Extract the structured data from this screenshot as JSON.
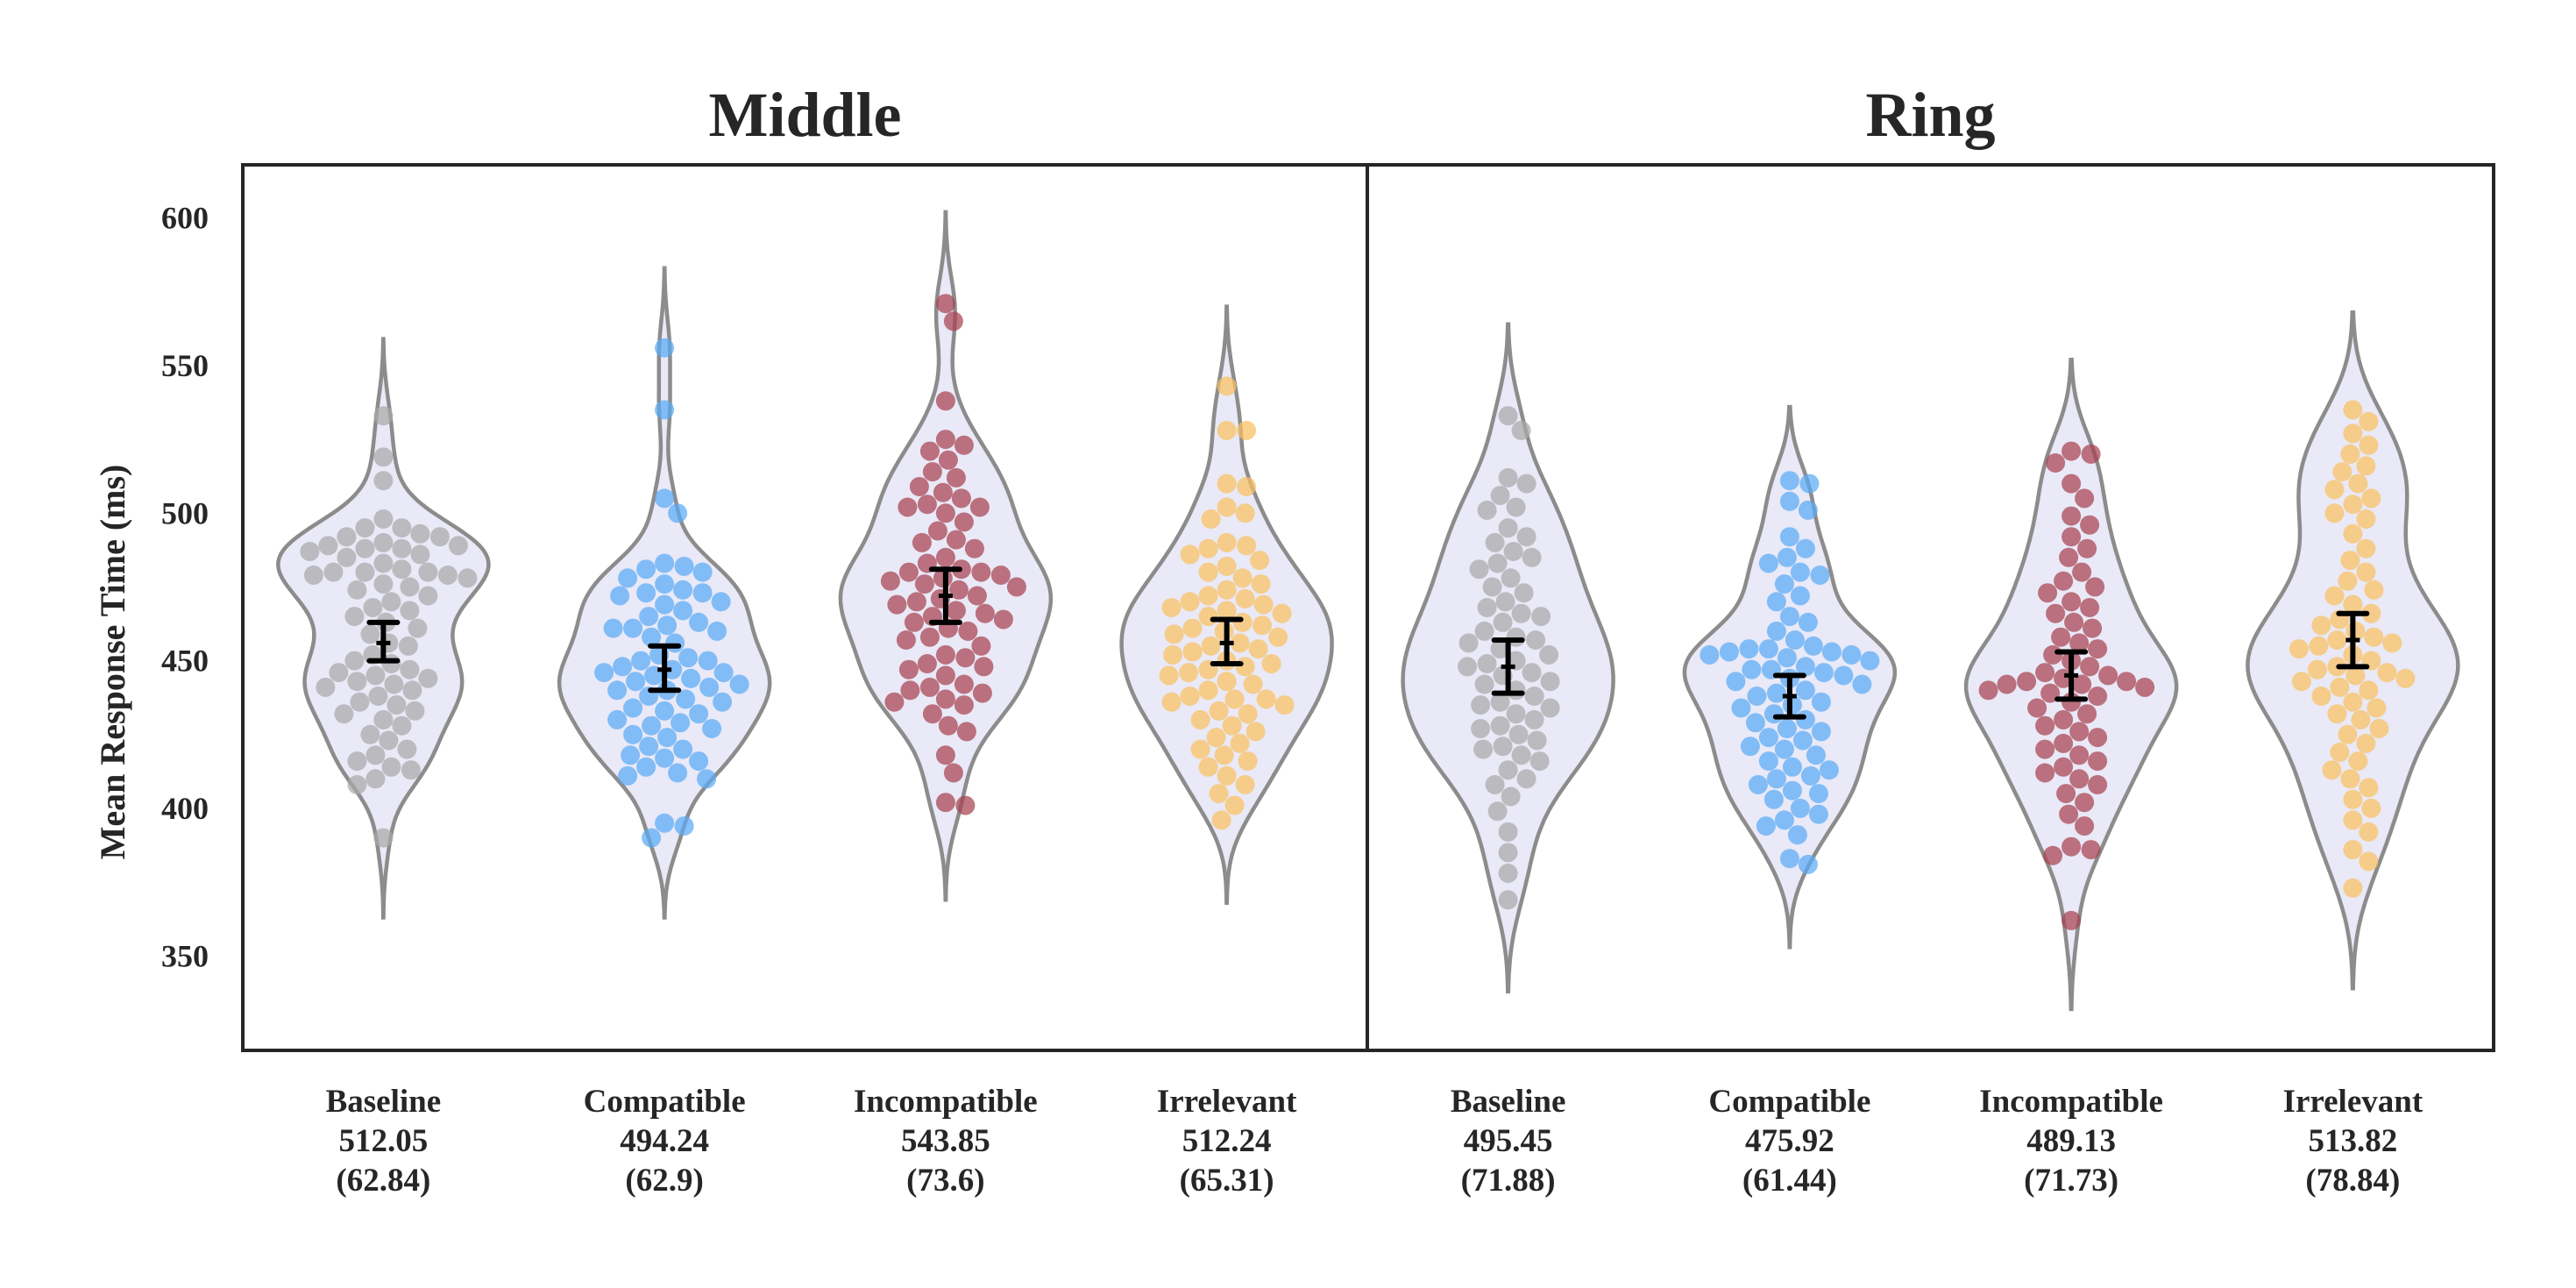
{
  "chart_data": [
    {
      "type": "violin-swarm",
      "title": "Middle",
      "ylabel": "Mean Response Time (ms)",
      "ylim": [
        318,
        618
      ],
      "yticks": [
        350,
        400,
        450,
        500,
        550,
        600
      ],
      "grid": false,
      "colors": {
        "Baseline": "#a9a9a9",
        "Compatible": "#5aaaf5",
        "Incompatible": "#a8414f",
        "Irrelevant": "#f9c15f",
        "violin_fill": "#e9e9f7",
        "violin_edge": "#8c8c8c",
        "error_bar": "#000000"
      },
      "groups": [
        {
          "category": "Baseline",
          "mean": "512.05",
          "sd": "(62.84)",
          "ci": [
            450,
            456,
            463
          ],
          "range": [
            363,
            559
          ],
          "points": [
            533,
            519,
            511,
            498,
            495,
            495,
            493,
            492,
            492,
            490,
            489,
            489,
            488,
            488,
            487,
            486,
            485,
            483,
            481,
            480,
            480,
            480,
            479,
            479,
            478,
            476,
            475,
            474,
            472,
            470,
            468,
            467,
            465,
            463,
            461,
            459,
            456,
            455,
            452,
            450,
            449,
            447,
            446,
            445,
            444,
            443,
            442,
            441,
            440,
            438,
            436,
            435,
            433,
            432,
            430,
            428,
            425,
            423,
            420,
            418,
            416,
            414,
            413,
            410,
            408,
            390
          ]
        },
        {
          "category": "Compatible",
          "mean": "494.24",
          "sd": "(62.9)",
          "ci": [
            440,
            447,
            455
          ],
          "range": [
            363,
            583
          ],
          "points": [
            556,
            535,
            505,
            500,
            483,
            482,
            481,
            480,
            478,
            476,
            474,
            473,
            473,
            472,
            470,
            469,
            467,
            465,
            463,
            462,
            461,
            461,
            460,
            458,
            456,
            452,
            451,
            450,
            450,
            448,
            447,
            446,
            446,
            445,
            444,
            443,
            442,
            441,
            440,
            440,
            438,
            437,
            436,
            434,
            433,
            432,
            430,
            429,
            428,
            427,
            425,
            424,
            421,
            420,
            418,
            417,
            416,
            414,
            412,
            411,
            410,
            395,
            394,
            390
          ]
        },
        {
          "category": "Incompatible",
          "mean": "543.85",
          "sd": "(73.6)",
          "ci": [
            463,
            472,
            481
          ],
          "range": [
            369,
            602
          ],
          "points": [
            571,
            565,
            538,
            525,
            523,
            521,
            518,
            514,
            512,
            509,
            507,
            505,
            503,
            502,
            502,
            500,
            497,
            494,
            491,
            490,
            488,
            485,
            483,
            481,
            480,
            480,
            479,
            478,
            477,
            476,
            475,
            474,
            472,
            471,
            470,
            469,
            467,
            466,
            465,
            464,
            463,
            461,
            460,
            458,
            457,
            455,
            452,
            451,
            449,
            448,
            447,
            445,
            442,
            441,
            440,
            439,
            437,
            436,
            435,
            432,
            428,
            426,
            418,
            412,
            402,
            401
          ]
        },
        {
          "category": "Irrelevant",
          "mean": "512.24",
          "sd": "(65.31)",
          "ci": [
            449,
            456,
            464
          ],
          "range": [
            368,
            570
          ],
          "points": [
            543,
            528,
            528,
            510,
            509,
            502,
            500,
            498,
            490,
            489,
            488,
            486,
            484,
            482,
            480,
            478,
            476,
            474,
            472,
            471,
            470,
            469,
            468,
            467,
            466,
            465,
            463,
            462,
            461,
            460,
            459,
            458,
            456,
            455,
            454,
            453,
            452,
            450,
            449,
            448,
            447,
            446,
            445,
            443,
            442,
            440,
            438,
            437,
            437,
            436,
            435,
            433,
            432,
            430,
            428,
            426,
            424,
            422,
            420,
            418,
            416,
            414,
            411,
            408,
            405,
            401,
            396
          ]
        }
      ]
    },
    {
      "type": "violin-swarm",
      "title": "Ring",
      "ylim": [
        318,
        618
      ],
      "groups": [
        {
          "category": "Baseline",
          "mean": "495.45",
          "sd": "(71.88)",
          "ci": [
            439,
            448,
            457
          ],
          "range": [
            338,
            564
          ],
          "points": [
            533,
            528,
            512,
            510,
            506,
            502,
            501,
            495,
            492,
            490,
            487,
            485,
            483,
            481,
            478,
            475,
            473,
            470,
            468,
            466,
            465,
            463,
            460,
            458,
            457,
            456,
            454,
            452,
            450,
            449,
            448,
            446,
            445,
            443,
            442,
            440,
            438,
            436,
            435,
            434,
            432,
            430,
            428,
            427,
            425,
            423,
            421,
            420,
            418,
            416,
            413,
            410,
            408,
            404,
            399,
            392,
            385,
            378,
            369
          ]
        },
        {
          "category": "Compatible",
          "mean": "475.92",
          "sd": "(61.44)",
          "ci": [
            431,
            438,
            445
          ],
          "range": [
            353,
            536
          ],
          "points": [
            511,
            510,
            504,
            501,
            492,
            488,
            485,
            483,
            480,
            479,
            476,
            472,
            470,
            465,
            463,
            460,
            457,
            455,
            454,
            454,
            453,
            453,
            452,
            452,
            451,
            450,
            448,
            447,
            447,
            446,
            445,
            444,
            443,
            442,
            440,
            439,
            438,
            436,
            435,
            434,
            432,
            430,
            429,
            427,
            426,
            424,
            423,
            421,
            420,
            418,
            416,
            414,
            413,
            411,
            410,
            408,
            406,
            405,
            403,
            400,
            398,
            396,
            394,
            391,
            383,
            381
          ]
        },
        {
          "category": "Incompatible",
          "mean": "489.13",
          "sd": "(71.73)",
          "ci": [
            437,
            445,
            453
          ],
          "range": [
            332,
            552
          ],
          "points": [
            521,
            520,
            517,
            510,
            505,
            499,
            496,
            492,
            488,
            485,
            480,
            477,
            475,
            473,
            470,
            468,
            466,
            463,
            461,
            458,
            456,
            454,
            452,
            450,
            448,
            446,
            445,
            444,
            443,
            443,
            442,
            442,
            441,
            440,
            439,
            438,
            436,
            434,
            432,
            430,
            428,
            426,
            424,
            422,
            420,
            418,
            416,
            414,
            412,
            410,
            408,
            405,
            402,
            398,
            394,
            387,
            386,
            384,
            362
          ]
        },
        {
          "category": "Irrelevant",
          "mean": "513.82",
          "sd": "(78.84)",
          "ci": [
            448,
            457,
            466
          ],
          "range": [
            339,
            568
          ],
          "points": [
            535,
            531,
            527,
            523,
            520,
            516,
            514,
            510,
            508,
            505,
            503,
            500,
            498,
            493,
            488,
            484,
            480,
            477,
            474,
            472,
            469,
            466,
            464,
            462,
            460,
            458,
            457,
            456,
            455,
            454,
            452,
            450,
            448,
            447,
            446,
            445,
            444,
            443,
            441,
            440,
            438,
            436,
            434,
            432,
            430,
            427,
            425,
            422,
            419,
            416,
            413,
            410,
            407,
            403,
            400,
            396,
            392,
            386,
            382,
            373
          ]
        }
      ]
    }
  ]
}
